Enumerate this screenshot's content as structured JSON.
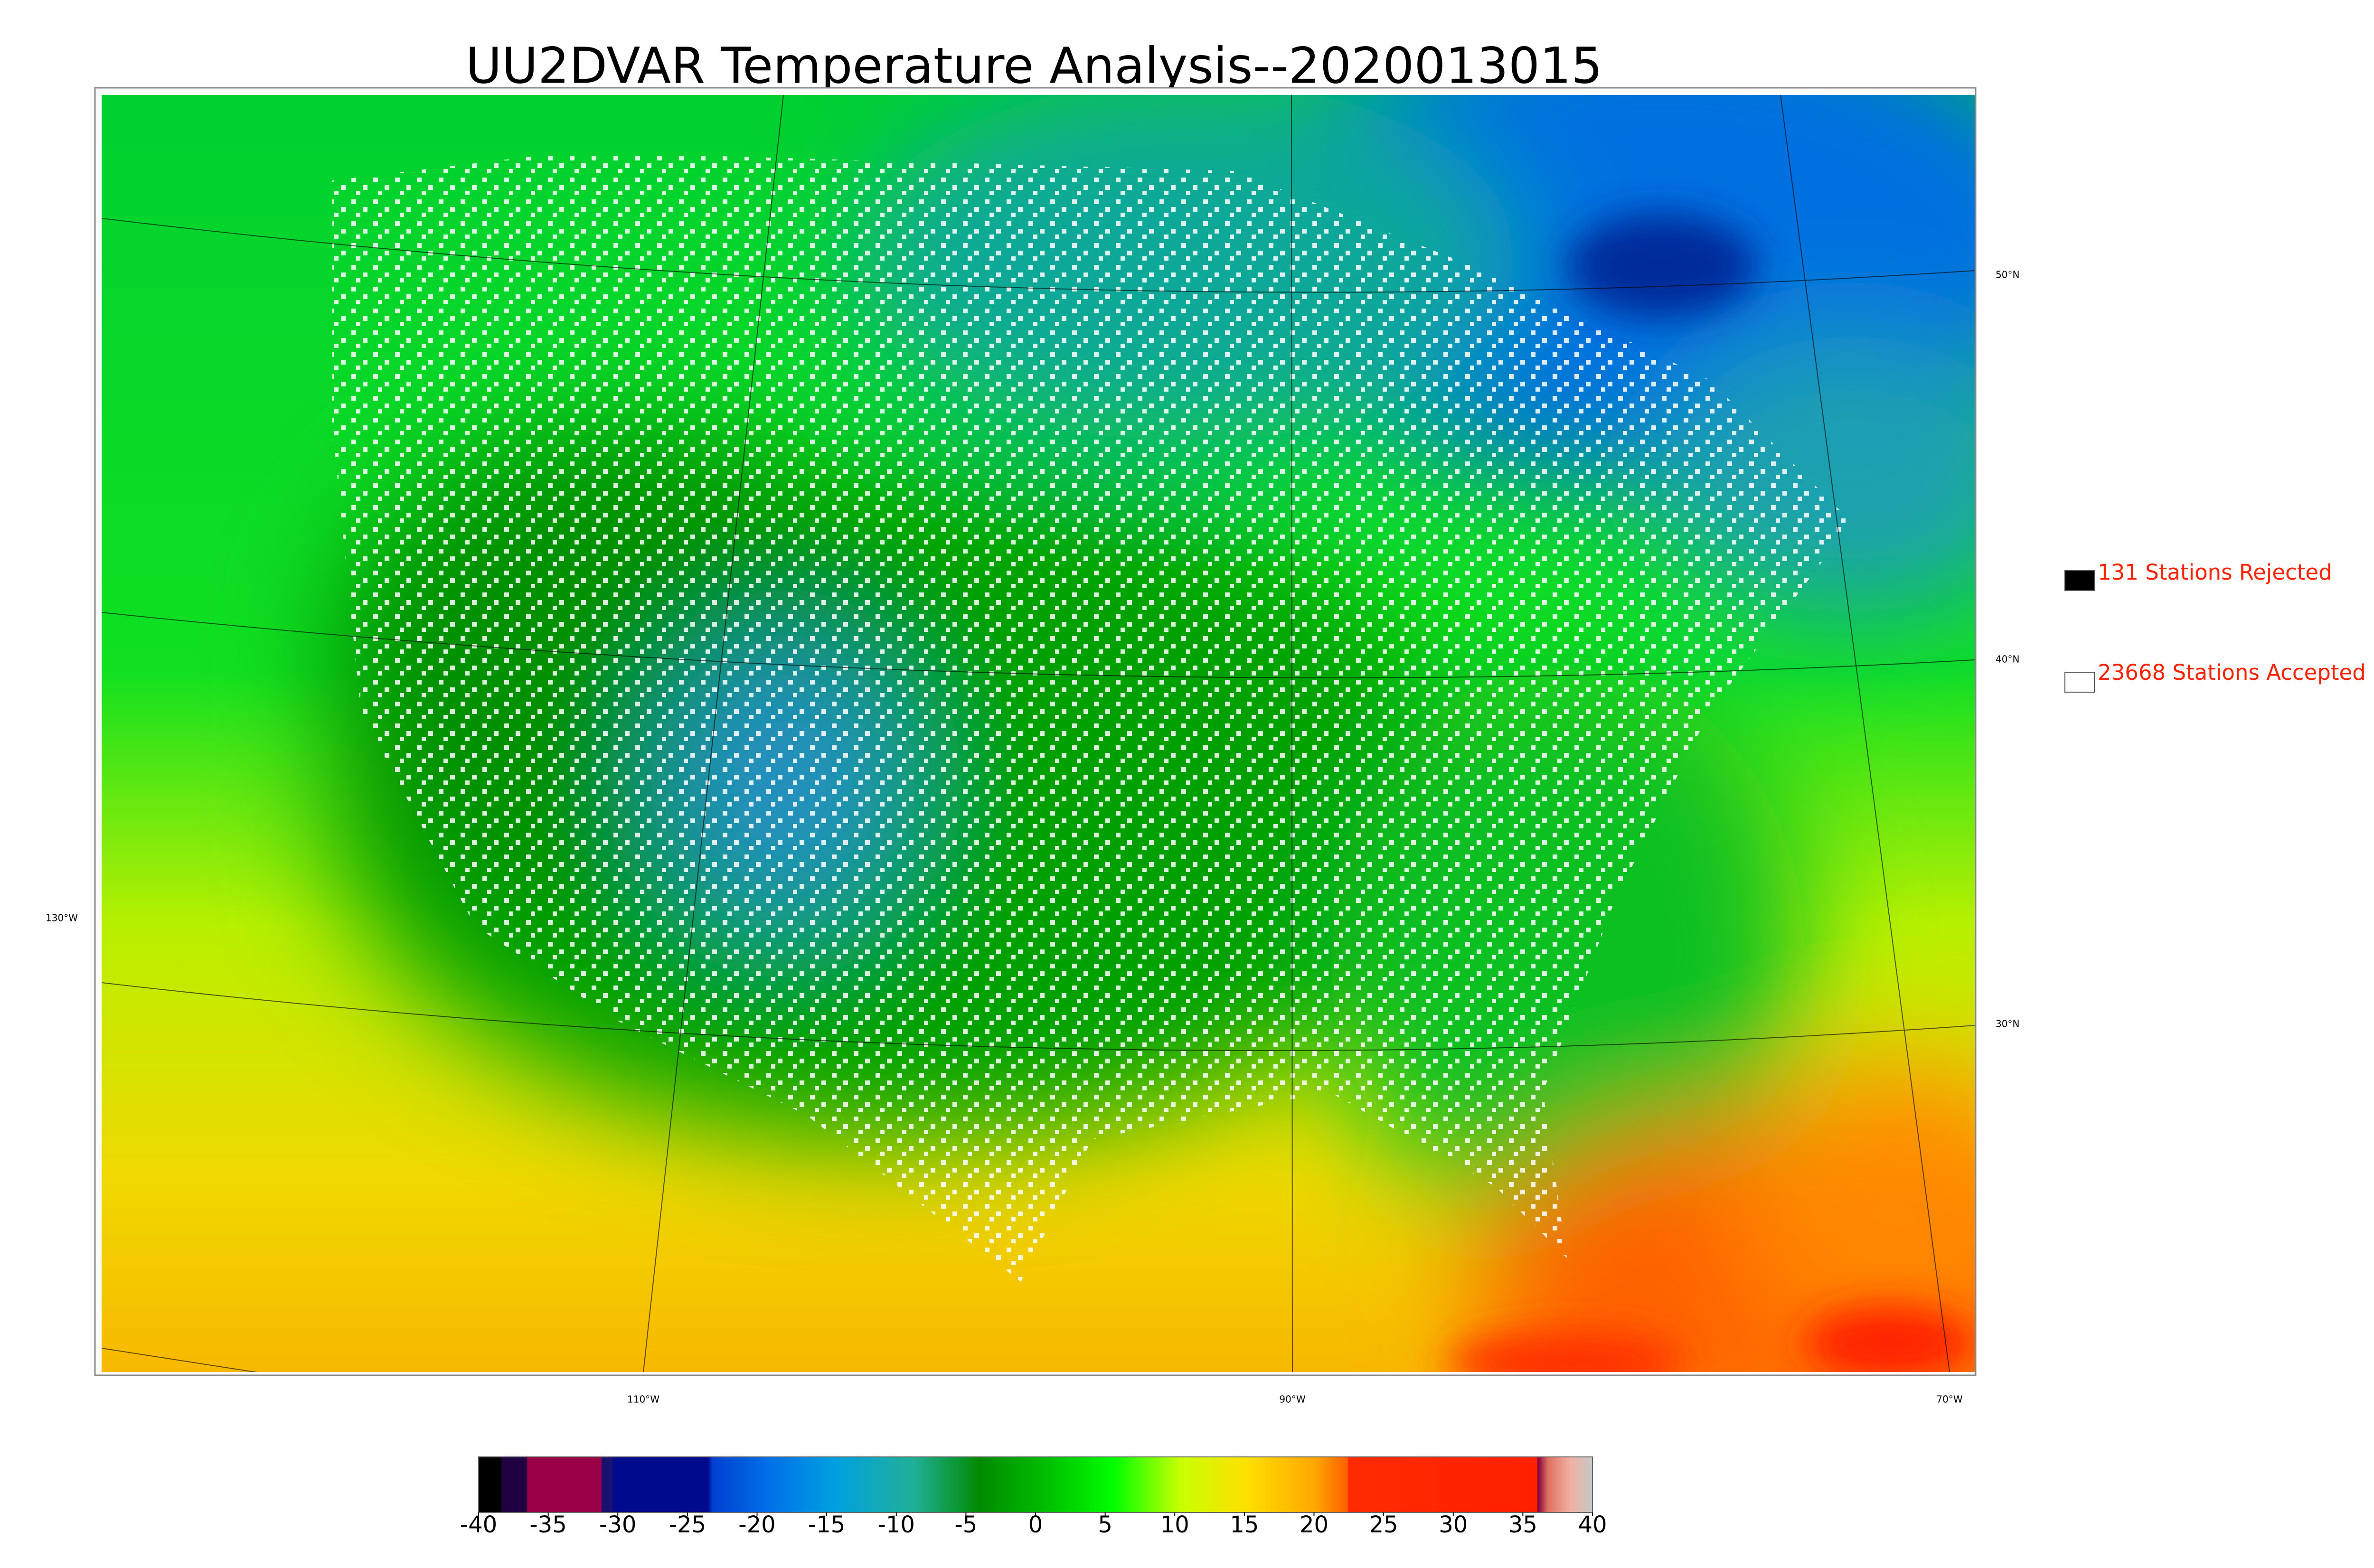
{
  "title": "UU2DVAR Temperature Analysis--2020013015",
  "map": {
    "lat_labels": [
      "50°N",
      "40°N",
      "30°N"
    ],
    "lon_labels": [
      "130°W",
      "110°W",
      "90°W",
      "70°W"
    ]
  },
  "legend": [
    "131 Stations Rejected",
    "23668 Stations Accepted"
  ],
  "colorbar": {
    "lim": [
      -40,
      40
    ],
    "ticks": [
      -40,
      -35,
      -30,
      -25,
      -20,
      -15,
      -10,
      -5,
      0,
      5,
      10,
      15,
      20,
      25,
      30,
      35,
      40
    ]
  }
}
